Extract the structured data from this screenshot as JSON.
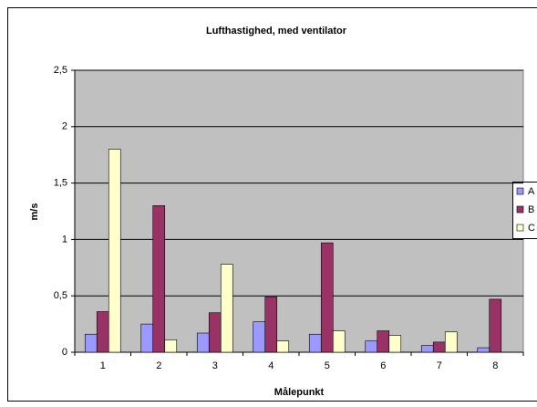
{
  "chart_data": {
    "type": "bar",
    "title": "Lufthastighed, med ventilator",
    "x_label": "Målepunkt",
    "y_label": "m/s",
    "categories": [
      "1",
      "2",
      "3",
      "4",
      "5",
      "6",
      "7",
      "8"
    ],
    "series": [
      {
        "name": "A",
        "color": "#9999ff",
        "values": [
          0.16,
          0.25,
          0.17,
          0.27,
          0.16,
          0.1,
          0.06,
          0.04
        ]
      },
      {
        "name": "B",
        "color": "#993366",
        "values": [
          0.36,
          1.3,
          0.35,
          0.49,
          0.97,
          0.19,
          0.09,
          0.47
        ]
      },
      {
        "name": "C",
        "color": "#ffffcc",
        "values": [
          1.8,
          0.11,
          0.78,
          0.1,
          0.19,
          0.15,
          0.18,
          0
        ]
      }
    ],
    "ylim": [
      0,
      2.5
    ],
    "yticks": [
      0,
      {
        "value": 0.5,
        "label": "0,5"
      },
      1,
      {
        "value": 1.5,
        "label": "1,5"
      },
      2,
      {
        "value": 2.5,
        "label": "2,5"
      }
    ],
    "grid": true,
    "legend": "right"
  }
}
